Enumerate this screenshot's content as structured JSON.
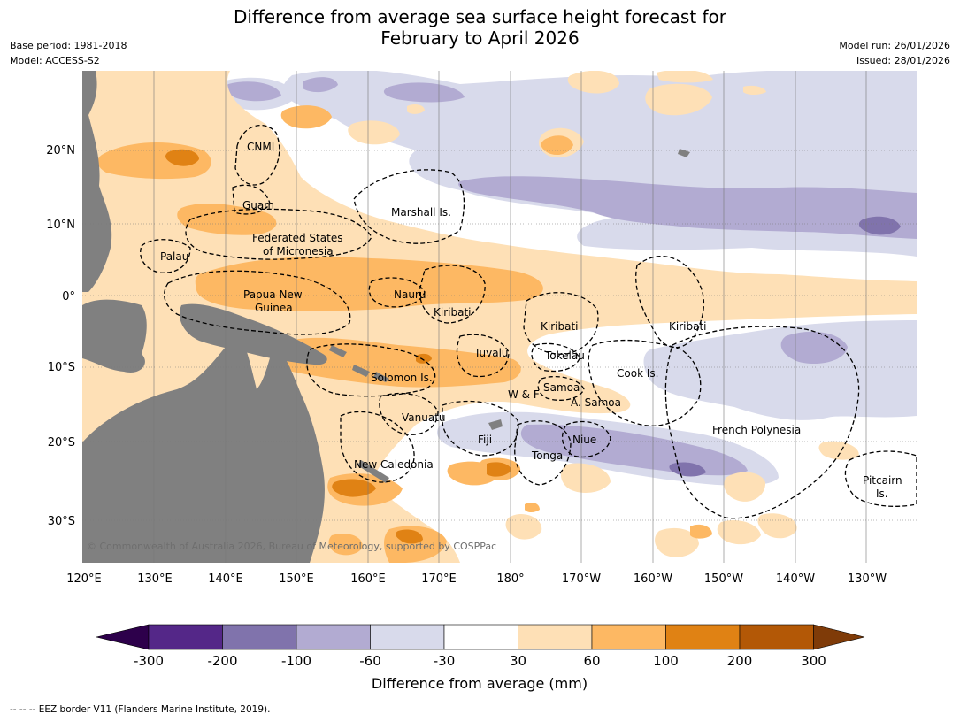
{
  "title": {
    "line1": "Difference from average sea surface height forecast for",
    "line2": "February to April 2026"
  },
  "meta": {
    "base_period": "Base period: 1981-2018",
    "model": "Model: ACCESS-S2",
    "model_run": "Model run: 26/01/2026",
    "issued": "Issued: 28/01/2026"
  },
  "map": {
    "lon_labels": [
      "120°E",
      "130°E",
      "140°E",
      "150°E",
      "160°E",
      "170°E",
      "180°",
      "170°W",
      "160°W",
      "150°W",
      "140°W",
      "130°W"
    ],
    "lat_labels": [
      "20°N",
      "10°N",
      "0°",
      "10°S",
      "20°S",
      "30°S"
    ],
    "copyright": "© Commonwealth of Australia 2026, Bureau of Meteorology, supported by COSPPac",
    "regions": {
      "cnmi": "CNMI",
      "guam": "Guam",
      "marshall": "Marshall Is.",
      "fsm_1": "Federated States",
      "fsm_2": "of Micronesia",
      "palau": "Palau",
      "png_1": "Papua New",
      "png_2": "Guinea",
      "nauru": "Nauru",
      "kiribati_w": "Kiribati",
      "kiribati_c": "Kiribati",
      "kiribati_e": "Kiribati",
      "tuvalu": "Tuvalu",
      "tokelau": "Tokelau",
      "cook": "Cook Is.",
      "solomon": "Solomon Is.",
      "samoa": "Samoa",
      "wf": "W & F",
      "asamoa": "A. Samoa",
      "vanuatu": "Vanuatu",
      "fiji": "Fiji",
      "niue": "Niue",
      "tonga": "Tonga",
      "frpoly": "French Polynesia",
      "newcal": "New Caledonia",
      "pitcairn_1": "Pitcairn",
      "pitcairn_2": "Is."
    },
    "colors": {
      "land": "#808080",
      "neg300": "#2d004b",
      "neg200": "#542788",
      "neg100": "#8073ac",
      "neg60": "#b2abd2",
      "neg30": "#d8daeb",
      "zero": "#ffffff",
      "pos30": "#fee0b6",
      "pos60": "#fdb863",
      "pos100": "#e08214",
      "pos200": "#b35806",
      "pos300": "#7f3b08"
    }
  },
  "colorbar": {
    "ticks": [
      "-300",
      "-200",
      "-100",
      "-60",
      "-30",
      "30",
      "60",
      "100",
      "200",
      "300"
    ],
    "label": "Difference from average (mm)"
  },
  "footer": "--  --  -- EEZ border V11 (Flanders Marine Institute, 2019)."
}
